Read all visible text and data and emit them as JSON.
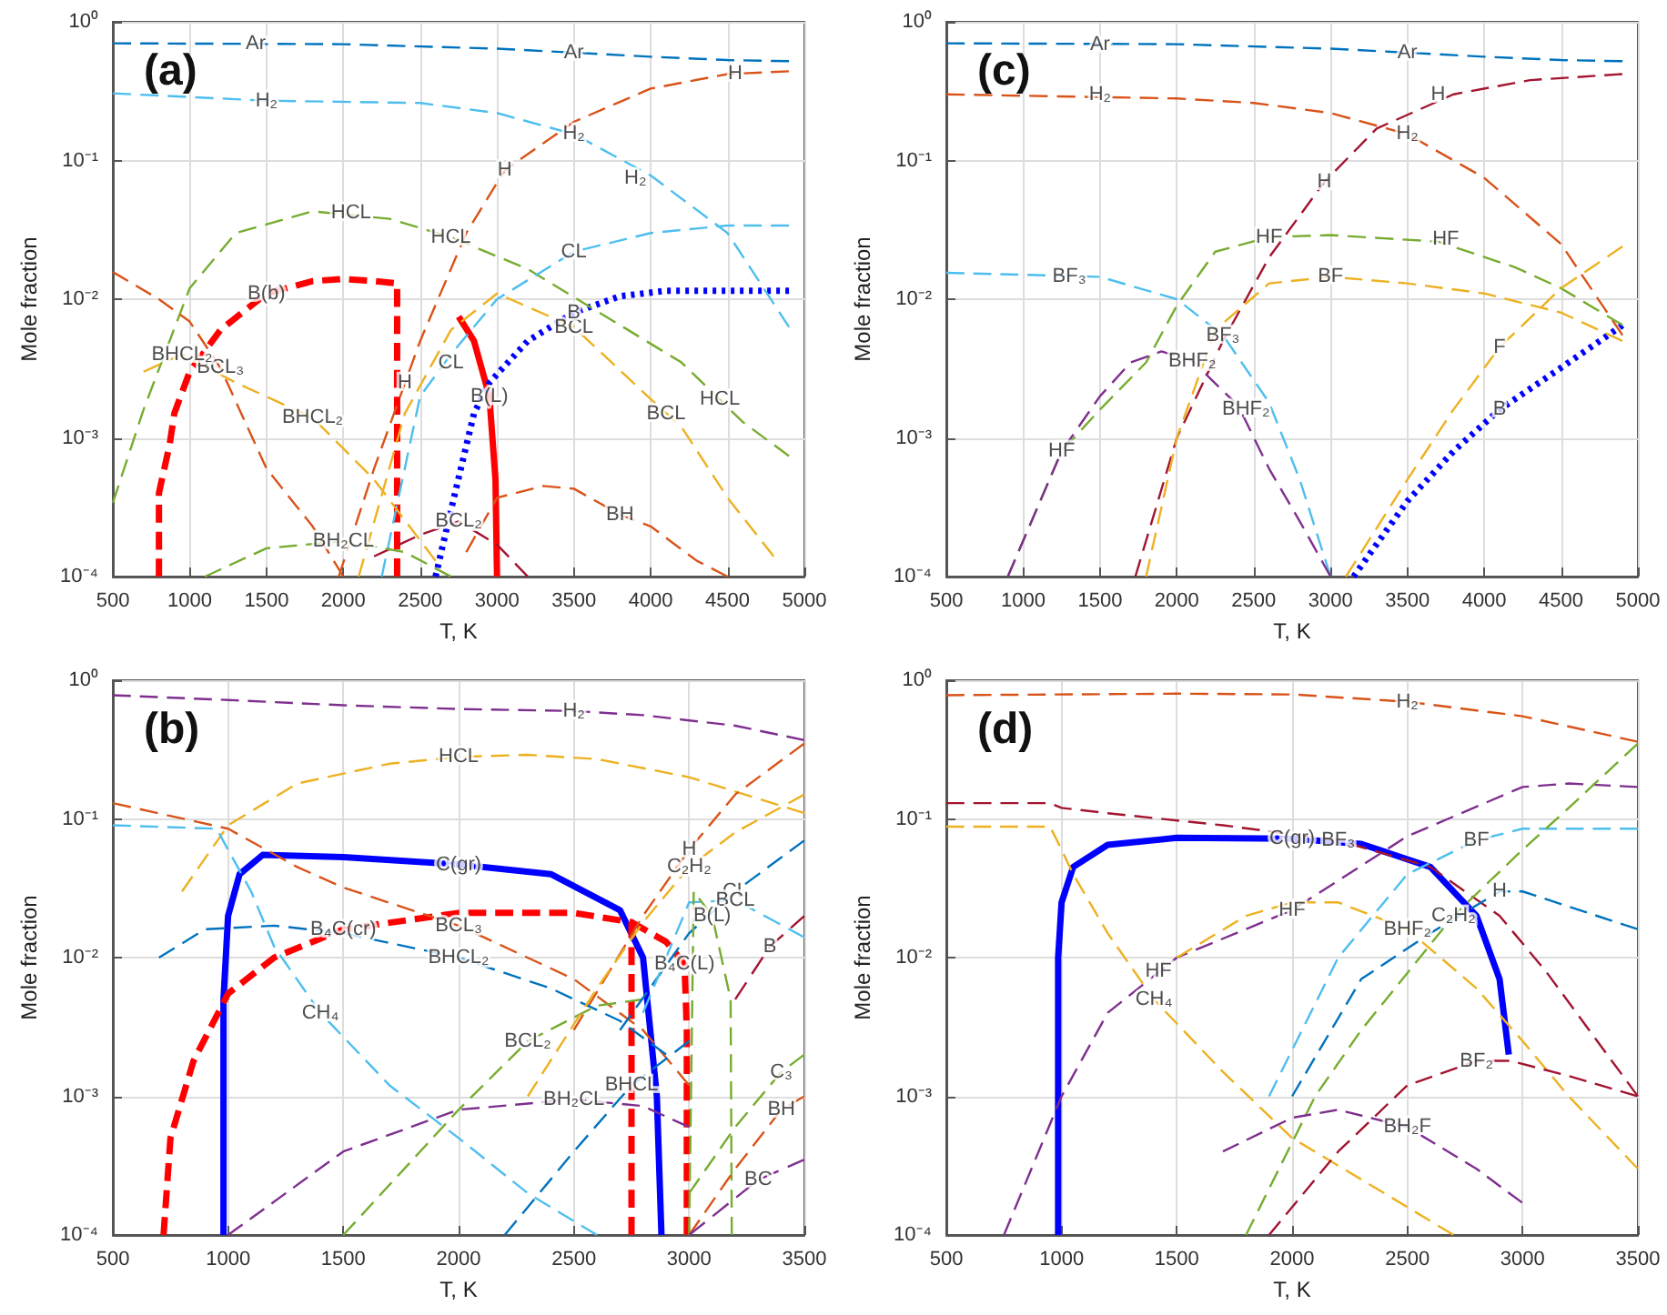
{
  "chart_data": [
    {
      "type": "line",
      "title": "(a)",
      "xlabel": "T, K",
      "ylabel": "Mole fraction",
      "log": "y",
      "grid": true,
      "line_style": "dashed",
      "xlim": [
        500,
        5000
      ],
      "xticks": [
        500,
        1000,
        1500,
        2000,
        2500,
        3000,
        3500,
        4000,
        4500,
        5000
      ],
      "ylim": [
        0.0001,
        1
      ],
      "yticks": [
        {
          "value": 0.0001,
          "label": "10⁻⁴"
        },
        {
          "value": 0.001,
          "label": "10⁻³"
        },
        {
          "value": 0.01,
          "label": "10⁻²"
        },
        {
          "value": 0.1,
          "label": "10⁻¹"
        },
        {
          "value": 1,
          "label": "10⁰"
        }
      ],
      "series": [
        {
          "name": "Ar",
          "color": "#0072bd",
          "x": [
            500,
            2000,
            3000,
            3500,
            4000,
            4500,
            4900
          ],
          "values": [
            0.7,
            0.69,
            0.64,
            0.6,
            0.56,
            0.53,
            0.52
          ]
        },
        {
          "name": "H₂",
          "color": "#4dbeee",
          "x": [
            500,
            1500,
            2500,
            3000,
            3500,
            4000,
            4500,
            4900
          ],
          "values": [
            0.305,
            0.27,
            0.26,
            0.22,
            0.155,
            0.078,
            0.03,
            0.0063
          ]
        },
        {
          "name": "H",
          "color": "#d95319",
          "x": [
            1970,
            2200,
            2500,
            2800,
            3050,
            3500,
            4000,
            4500,
            4900
          ],
          "values": [
            0.0001,
            0.0006,
            0.005,
            0.03,
            0.085,
            0.19,
            0.33,
            0.42,
            0.44
          ]
        },
        {
          "name": "HCL",
          "color": "#77ac30",
          "x": [
            500,
            700,
            1000,
            1300,
            1800,
            2300,
            2700,
            3200,
            3700,
            4200,
            4600,
            4900
          ],
          "values": [
            0.00034,
            0.0016,
            0.012,
            0.03,
            0.043,
            0.038,
            0.028,
            0.0165,
            0.0076,
            0.0035,
            0.0013,
            0.00074
          ]
        },
        {
          "name": "CL",
          "color": "#4dbeee",
          "x": [
            2250,
            2500,
            2700,
            3000,
            3500,
            4000,
            4500,
            4900
          ],
          "values": [
            0.0001,
            0.002,
            0.004,
            0.01,
            0.022,
            0.03,
            0.034,
            0.034
          ]
        },
        {
          "name": "BCL",
          "color": "#edb120",
          "x": [
            2100,
            2400,
            2700,
            3000,
            3500,
            4000,
            4200,
            4500,
            4800
          ],
          "values": [
            0.0001,
            0.0015,
            0.006,
            0.011,
            0.0063,
            0.0019,
            0.0012,
            0.00037,
            0.00014
          ]
        },
        {
          "name": "BCL₃",
          "color": "#d95319",
          "x": [
            500,
            800,
            1000,
            1200,
            1500,
            1800,
            2000
          ],
          "values": [
            0.0157,
            0.01,
            0.0069,
            0.0032,
            0.0006,
            0.00023,
            0.0001
          ]
        },
        {
          "name": "BHCL₂",
          "color": "#edb120",
          "x": [
            700,
            950,
            1300,
            1800,
            2200,
            2600
          ],
          "values": [
            0.003,
            0.004,
            0.0025,
            0.0014,
            0.0005,
            0.00013
          ]
        },
        {
          "name": "BCL₂",
          "color": "#a2142f",
          "x": [
            2200,
            2500,
            2750,
            3000,
            3200
          ],
          "values": [
            0.00014,
            0.0002,
            0.00025,
            0.00017,
            0.0001
          ]
        },
        {
          "name": "BH₂CL",
          "color": "#77ac30",
          "x": [
            1100,
            1500,
            2000,
            2400,
            2700
          ],
          "values": [
            0.0001,
            0.00016,
            0.00018,
            0.00015,
            0.0001
          ]
        },
        {
          "name": "BH",
          "color": "#d95319",
          "x": [
            2800,
            3000,
            3300,
            3500,
            3800,
            4000,
            4300,
            4500
          ],
          "values": [
            0.00015,
            0.00037,
            0.00045,
            0.00043,
            0.00028,
            0.00023,
            0.00013,
            0.0001
          ]
        },
        {
          "name": "B(b)",
          "color": "#ff0000",
          "line_style": "dashed",
          "x": [
            800,
            800,
            870,
            900,
            1000,
            1200,
            1500,
            1800,
            2000,
            2200,
            2350,
            2350
          ],
          "values": [
            0.0001,
            0.0004,
            0.0009,
            0.0015,
            0.003,
            0.006,
            0.011,
            0.0135,
            0.014,
            0.0135,
            0.013,
            0.0001
          ]
        },
        {
          "name": "B(L)",
          "color": "#ff0000",
          "line_style": "solid",
          "x": [
            2750,
            2850,
            2950,
            2990,
            3000
          ],
          "values": [
            0.0075,
            0.005,
            0.002,
            0.0005,
            0.0001
          ]
        },
        {
          "name": "B",
          "color": "#0000ff",
          "line_style": "dotted",
          "x": [
            2600,
            2700,
            2850,
            2950,
            3200,
            3500,
            3800,
            4100,
            4500,
            4900
          ],
          "values": [
            0.0001,
            0.0003,
            0.0015,
            0.0025,
            0.005,
            0.008,
            0.0105,
            0.0115,
            0.0115,
            0.0115
          ]
        }
      ],
      "annotations": [
        {
          "text": "Ar",
          "x": 1430,
          "y": 0.7
        },
        {
          "text": "H₂",
          "x": 1500,
          "y": 0.27
        },
        {
          "text": "H₂",
          "x": 3900,
          "y": 0.075
        },
        {
          "text": "HCL",
          "x": 2050,
          "y": 0.042
        },
        {
          "text": "HCL",
          "x": 4450,
          "y": 0.0019
        },
        {
          "text": "H",
          "x": 4550,
          "y": 0.42
        },
        {
          "text": "H",
          "x": 2400,
          "y": 0.0025
        },
        {
          "text": "CL",
          "x": 2700,
          "y": 0.0035
        },
        {
          "text": "BCL",
          "x": 4100,
          "y": 0.0015
        },
        {
          "text": "BHCL₂",
          "x": 950,
          "y": 0.004
        }
      ]
    },
    {
      "type": "line",
      "title": "(c)",
      "xlabel": "T, K",
      "ylabel": "Mole fraction",
      "log": "y",
      "grid": true,
      "line_style": "dashed",
      "xlim": [
        500,
        5000
      ],
      "xticks": [
        500,
        1000,
        1500,
        2000,
        2500,
        3000,
        3500,
        4000,
        4500,
        5000
      ],
      "ylim": [
        0.0001,
        1
      ],
      "yticks": [
        {
          "value": 0.0001,
          "label": "10⁻⁴"
        },
        {
          "value": 0.001,
          "label": "10⁻³"
        },
        {
          "value": 0.01,
          "label": "10⁻²"
        },
        {
          "value": 0.1,
          "label": "10⁻¹"
        },
        {
          "value": 1,
          "label": "10⁰"
        }
      ],
      "series": [
        {
          "name": "Ar",
          "color": "#0072bd",
          "x": [
            500,
            2000,
            3000,
            3500,
            4000,
            4500,
            4900
          ],
          "values": [
            0.7,
            0.69,
            0.64,
            0.6,
            0.56,
            0.53,
            0.52
          ]
        },
        {
          "name": "H₂",
          "color": "#d95319",
          "x": [
            500,
            2000,
            2500,
            3000,
            3500,
            4000,
            4500,
            4900
          ],
          "values": [
            0.3,
            0.28,
            0.26,
            0.22,
            0.155,
            0.075,
            0.025,
            0.0055
          ]
        },
        {
          "name": "H",
          "color": "#a2142f",
          "x": [
            1730,
            2000,
            2300,
            2600,
            2960,
            3300,
            3800,
            4300,
            4900
          ],
          "values": [
            0.0001,
            0.001,
            0.005,
            0.02,
            0.07,
            0.17,
            0.3,
            0.38,
            0.42
          ]
        },
        {
          "name": "HF",
          "color": "#77ac30",
          "x": [
            900,
            1250,
            1500,
            1800,
            2000,
            2250,
            2600,
            3000,
            3700,
            4200,
            4500,
            4900
          ],
          "values": [
            0.0001,
            0.0008,
            0.0016,
            0.0035,
            0.009,
            0.022,
            0.028,
            0.029,
            0.026,
            0.017,
            0.012,
            0.0065
          ]
        },
        {
          "name": "BF",
          "color": "#edb120",
          "x": [
            1800,
            2000,
            2250,
            2600,
            3000,
            3500,
            4000,
            4500,
            4900
          ],
          "values": [
            0.0001,
            0.001,
            0.006,
            0.013,
            0.0145,
            0.013,
            0.011,
            0.008,
            0.005
          ]
        },
        {
          "name": "BF₃",
          "color": "#4dbeee",
          "x": [
            500,
            1500,
            2000,
            2300,
            2600,
            2800,
            3000
          ],
          "values": [
            0.0155,
            0.0145,
            0.01,
            0.0055,
            0.0018,
            0.0005,
            0.0001
          ]
        },
        {
          "name": "BHF₂",
          "color": "#7e2f8e",
          "x": [
            900,
            1250,
            1500,
            1700,
            1900,
            2100,
            2400,
            2600,
            2800,
            3000
          ],
          "values": [
            0.0001,
            0.0008,
            0.002,
            0.0035,
            0.0042,
            0.0036,
            0.0017,
            0.0006,
            0.00025,
            0.0001
          ]
        },
        {
          "name": "F",
          "color": "#edb120",
          "x": [
            3100,
            3500,
            3800,
            4100,
            4500,
            4900
          ],
          "values": [
            0.0001,
            0.0005,
            0.0016,
            0.0045,
            0.012,
            0.024
          ]
        },
        {
          "name": "B",
          "color": "#0000ff",
          "line_style": "dotted",
          "x": [
            3150,
            3500,
            3800,
            4100,
            4500,
            4900
          ],
          "values": [
            0.0001,
            0.00035,
            0.0008,
            0.0016,
            0.0032,
            0.0065
          ]
        }
      ],
      "annotations": [
        {
          "text": "Ar",
          "x": 1500,
          "y": 0.69
        },
        {
          "text": "H₂",
          "x": 1500,
          "y": 0.3
        },
        {
          "text": "H",
          "x": 3700,
          "y": 0.3
        },
        {
          "text": "HF",
          "x": 3750,
          "y": 0.027
        },
        {
          "text": "HF",
          "x": 1250,
          "y": 0.0008
        },
        {
          "text": "BF₃",
          "x": 1300,
          "y": 0.0145
        },
        {
          "text": "BHF₂",
          "x": 2450,
          "y": 0.0016
        }
      ]
    },
    {
      "type": "line",
      "title": "(b)",
      "xlabel": "T, K",
      "ylabel": "Mole fraction",
      "log": "y",
      "grid": true,
      "line_style": "dashed",
      "xlim": [
        500,
        3500
      ],
      "xticks": [
        500,
        1000,
        1500,
        2000,
        2500,
        3000,
        3500
      ],
      "ylim": [
        0.0001,
        1
      ],
      "yticks": [
        {
          "value": 0.0001,
          "label": "10⁻⁴"
        },
        {
          "value": 0.001,
          "label": "10⁻³"
        },
        {
          "value": 0.01,
          "label": "10⁻²"
        },
        {
          "value": 0.1,
          "label": "10⁻¹"
        },
        {
          "value": 1,
          "label": "10⁰"
        }
      ],
      "series": [
        {
          "name": "H₂",
          "color": "#7e2f8e",
          "x": [
            500,
            1000,
            1500,
            2000,
            2500,
            2800,
            3200,
            3500
          ],
          "values": [
            0.78,
            0.72,
            0.66,
            0.62,
            0.6,
            0.56,
            0.47,
            0.37
          ]
        },
        {
          "name": "HCL",
          "color": "#edb120",
          "x": [
            800,
            1000,
            1300,
            1700,
            2000,
            2300,
            2600,
            3000,
            3500
          ],
          "values": [
            0.03,
            0.09,
            0.18,
            0.25,
            0.28,
            0.29,
            0.27,
            0.2,
            0.11
          ]
        },
        {
          "name": "H",
          "color": "#d95319",
          "x": [
            2500,
            2800,
            3000,
            3200,
            3500
          ],
          "values": [
            0.003,
            0.02,
            0.06,
            0.15,
            0.35
          ]
        },
        {
          "name": "CH₄",
          "color": "#4dbeee",
          "x": [
            500,
            950,
            1000,
            1100,
            1200,
            1400,
            1700,
            2000,
            2300,
            2600
          ],
          "values": [
            0.09,
            0.085,
            0.06,
            0.03,
            0.012,
            0.004,
            0.0012,
            0.0005,
            0.0002,
            0.0001
          ]
        },
        {
          "name": "BCL₃",
          "color": "#d95319",
          "x": [
            500,
            1000,
            1300,
            1500,
            2000,
            2500,
            2800,
            3000
          ],
          "values": [
            0.13,
            0.085,
            0.045,
            0.032,
            0.017,
            0.007,
            0.003,
            0.0012
          ]
        },
        {
          "name": "BHCL₂",
          "color": "#0072bd",
          "x": [
            700,
            900,
            1200,
            1500,
            2000,
            2400,
            2700,
            2900
          ],
          "values": [
            0.01,
            0.016,
            0.017,
            0.015,
            0.01,
            0.006,
            0.0035,
            0.002
          ]
        },
        {
          "name": "BCL₂",
          "color": "#77ac30",
          "x": [
            1500,
            2000,
            2300,
            2600,
            2800
          ],
          "values": [
            0.0001,
            0.0008,
            0.0025,
            0.0045,
            0.005
          ]
        },
        {
          "name": "BH₂CL",
          "color": "#7e2f8e",
          "x": [
            1000,
            1500,
            2000,
            2500,
            2800,
            3000
          ],
          "values": [
            0.0001,
            0.0004,
            0.0008,
            0.00095,
            0.00085,
            0.0006
          ]
        },
        {
          "name": "BHCL",
          "color": "#0072bd",
          "x": [
            2200,
            2500,
            2750,
            3000
          ],
          "values": [
            0.0001,
            0.0004,
            0.0012,
            0.0025
          ]
        },
        {
          "name": "C₂H₂",
          "color": "#edb120",
          "x": [
            2300,
            2600,
            2800,
            3000,
            3200,
            3500
          ],
          "values": [
            0.001,
            0.006,
            0.018,
            0.045,
            0.08,
            0.15
          ]
        },
        {
          "name": "CL",
          "color": "#0072bd",
          "x": [
            2700,
            3000,
            3200,
            3500
          ],
          "values": [
            0.003,
            0.015,
            0.03,
            0.07
          ]
        },
        {
          "name": "BCL",
          "color": "#4dbeee",
          "x": [
            2800,
            3000,
            3200,
            3500
          ],
          "values": [
            0.004,
            0.025,
            0.026,
            0.014
          ]
        },
        {
          "name": "B(L)",
          "color": "#77ac30",
          "x": [
            3000,
            3020,
            3100,
            3180,
            3185
          ],
          "values": [
            0.0001,
            0.03,
            0.02,
            0.005,
            0.0001
          ]
        },
        {
          "name": "B",
          "color": "#a2142f",
          "x": [
            3200,
            3350,
            3500
          ],
          "values": [
            0.005,
            0.012,
            0.02
          ]
        },
        {
          "name": "C₃",
          "color": "#77ac30",
          "x": [
            3000,
            3200,
            3400,
            3500
          ],
          "values": [
            0.0002,
            0.0006,
            0.0015,
            0.002
          ]
        },
        {
          "name": "BH",
          "color": "#d95319",
          "x": [
            3000,
            3200,
            3400,
            3500
          ],
          "values": [
            0.0001,
            0.0003,
            0.0008,
            0.001
          ]
        },
        {
          "name": "BC",
          "color": "#7e2f8e",
          "x": [
            3000,
            3300,
            3500
          ],
          "values": [
            0.0001,
            0.00025,
            0.00035
          ]
        },
        {
          "name": "C(gr)",
          "color": "#0000ff",
          "line_style": "solid",
          "x": [
            980,
            980,
            1000,
            1050,
            1150,
            1500,
            2000,
            2400,
            2700,
            2800,
            2860,
            2880
          ],
          "values": [
            0.0001,
            0.005,
            0.02,
            0.04,
            0.055,
            0.053,
            0.047,
            0.04,
            0.022,
            0.01,
            0.001,
            0.0001
          ]
        },
        {
          "name": "B₄C(cr)",
          "color": "#ff0000",
          "line_style": "dashed",
          "x": [
            720,
            750,
            850,
            1000,
            1200,
            1500,
            2000,
            2500,
            2750,
            2750
          ],
          "values": [
            0.0001,
            0.0005,
            0.0018,
            0.0055,
            0.01,
            0.016,
            0.021,
            0.021,
            0.018,
            0.0001
          ]
        },
        {
          "name": "B₄C(L)",
          "color": "#ff0000",
          "line_style": "dashed",
          "x": [
            2750,
            2900,
            2980,
            2990,
            2990
          ],
          "values": [
            0.018,
            0.013,
            0.009,
            0.003,
            0.0001
          ]
        }
      ]
    },
    {
      "type": "line",
      "title": "(d)",
      "xlabel": "T, K",
      "ylabel": "Mole fraction",
      "log": "y",
      "grid": true,
      "line_style": "dashed",
      "xlim": [
        500,
        3500
      ],
      "xticks": [
        500,
        1000,
        1500,
        2000,
        2500,
        3000,
        3500
      ],
      "ylim": [
        0.0001,
        1
      ],
      "yticks": [
        {
          "value": 0.0001,
          "label": "10⁻⁴"
        },
        {
          "value": 0.001,
          "label": "10⁻³"
        },
        {
          "value": 0.01,
          "label": "10⁻²"
        },
        {
          "value": 0.1,
          "label": "10⁻¹"
        },
        {
          "value": 1,
          "label": "10⁰"
        }
      ],
      "series": [
        {
          "name": "H₂",
          "color": "#d95319",
          "x": [
            500,
            1500,
            2000,
            2500,
            3000,
            3500
          ],
          "values": [
            0.78,
            0.8,
            0.79,
            0.7,
            0.55,
            0.36
          ]
        },
        {
          "name": "BF₃",
          "color": "#a2142f",
          "x": [
            500,
            950,
            1000,
            1200,
            1700,
            2200,
            2600,
            2900,
            3100,
            3500
          ],
          "values": [
            0.13,
            0.13,
            0.12,
            0.11,
            0.09,
            0.07,
            0.045,
            0.02,
            0.008,
            0.001
          ]
        },
        {
          "name": "CH₄",
          "color": "#edb120",
          "x": [
            500,
            950,
            1000,
            1050,
            1200,
            1400,
            1700,
            2000,
            2400,
            2700
          ],
          "values": [
            0.088,
            0.088,
            0.06,
            0.04,
            0.015,
            0.005,
            0.0015,
            0.0005,
            0.0002,
            0.0001
          ]
        },
        {
          "name": "HF",
          "color": "#7e2f8e",
          "x": [
            750,
            1000,
            1200,
            1500,
            2000,
            2500,
            3000,
            3200,
            3500
          ],
          "values": [
            0.0001,
            0.001,
            0.004,
            0.01,
            0.022,
            0.075,
            0.17,
            0.18,
            0.17
          ]
        },
        {
          "name": "BHF₂",
          "color": "#edb120",
          "x": [
            1500,
            1800,
            2000,
            2200,
            2500,
            2800,
            3000,
            3200,
            3500
          ],
          "values": [
            0.01,
            0.02,
            0.025,
            0.025,
            0.016,
            0.006,
            0.0025,
            0.001,
            0.0003
          ]
        },
        {
          "name": "BF",
          "color": "#4dbeee",
          "x": [
            1900,
            2200,
            2500,
            2800,
            3000,
            3500
          ],
          "values": [
            0.001,
            0.01,
            0.04,
            0.07,
            0.085,
            0.085
          ]
        },
        {
          "name": "H",
          "color": "#0072bd",
          "x": [
            2000,
            2300,
            2600,
            2900,
            3000,
            3500
          ],
          "values": [
            0.001,
            0.007,
            0.015,
            0.03,
            0.03,
            0.016
          ]
        },
        {
          "name": "C₂H₂",
          "color": "#77ac30",
          "x": [
            1800,
            2100,
            2300,
            2700,
            3000,
            3200,
            3500
          ],
          "values": [
            0.0001,
            0.001,
            0.003,
            0.02,
            0.06,
            0.12,
            0.35
          ]
        },
        {
          "name": "BF₂",
          "color": "#a2142f",
          "x": [
            1900,
            2200,
            2500,
            2800,
            2950,
            3200,
            3500
          ],
          "values": [
            0.0001,
            0.0004,
            0.0012,
            0.0018,
            0.0018,
            0.0014,
            0.001
          ]
        },
        {
          "name": "BH₂F",
          "color": "#7e2f8e",
          "x": [
            1700,
            2000,
            2200,
            2500,
            2800,
            3000
          ],
          "values": [
            0.0004,
            0.0007,
            0.0008,
            0.0006,
            0.0003,
            0.00017
          ]
        },
        {
          "name": "C(gr)",
          "color": "#0000ff",
          "line_style": "solid",
          "x": [
            985,
            985,
            1000,
            1050,
            1200,
            1500,
            2000,
            2300,
            2600,
            2800,
            2900,
            2940
          ],
          "values": [
            0.0001,
            0.01,
            0.025,
            0.045,
            0.065,
            0.073,
            0.072,
            0.066,
            0.045,
            0.02,
            0.007,
            0.002
          ]
        }
      ],
      "annotations": [
        {
          "text": "HF",
          "x": 1420,
          "y": 0.008
        }
      ]
    }
  ]
}
